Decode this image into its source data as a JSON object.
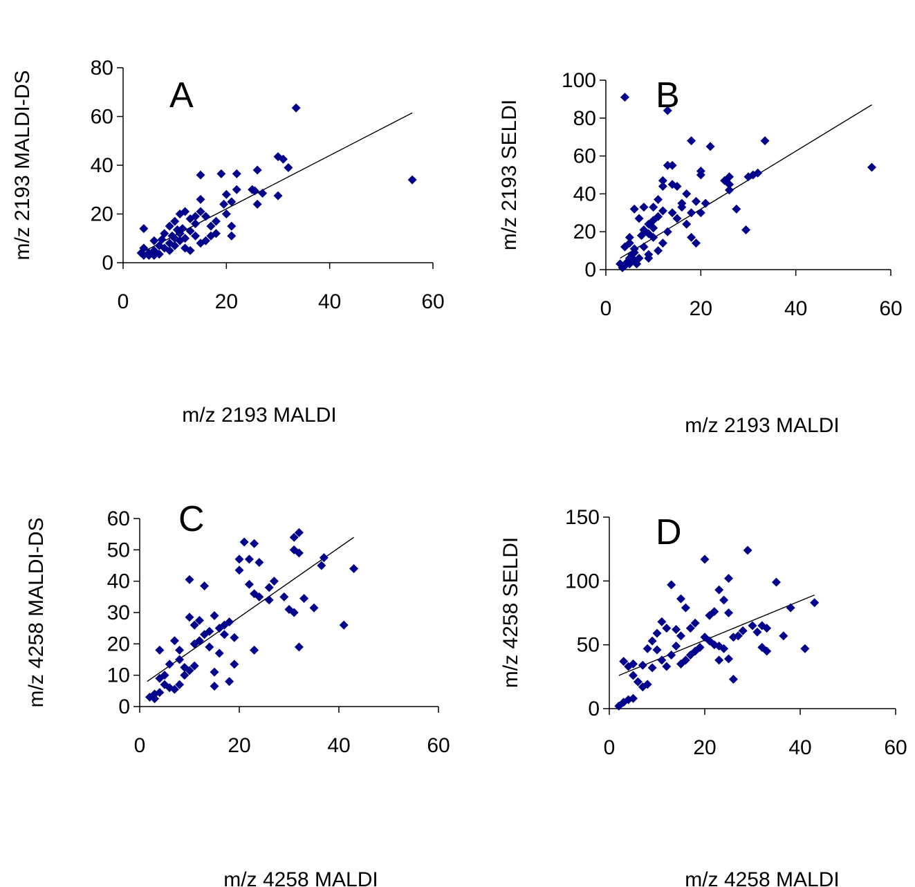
{
  "chart_data": [
    {
      "type": "scatter",
      "panel": "A",
      "xlabel": "m/z 2193 MALDI",
      "ylabel": "m/z 2193 MALDI-DS",
      "xlim": [
        0,
        60
      ],
      "ylim": [
        0,
        80
      ],
      "xticks": [
        0,
        20,
        40,
        60
      ],
      "yticks": [
        0,
        20,
        40,
        60,
        80
      ],
      "marker_color": "#00008B",
      "grid": false,
      "legend": "none",
      "trendline": {
        "x": [
          3,
          56
        ],
        "y": [
          3.5,
          61.5
        ]
      },
      "points": [
        [
          33.5,
          63.5
        ],
        [
          56,
          34
        ],
        [
          30,
          43.5
        ],
        [
          31,
          42.5
        ],
        [
          32,
          39
        ],
        [
          30,
          27.5
        ],
        [
          27,
          28.5
        ],
        [
          26,
          38
        ],
        [
          25,
          30
        ],
        [
          25.5,
          29.5
        ],
        [
          26,
          24
        ],
        [
          22,
          36.5
        ],
        [
          22,
          30
        ],
        [
          20,
          28
        ],
        [
          21,
          25
        ],
        [
          19,
          36.5
        ],
        [
          19.5,
          24
        ],
        [
          20,
          20
        ],
        [
          21,
          15
        ],
        [
          21,
          11
        ],
        [
          18,
          17
        ],
        [
          17,
          15
        ],
        [
          18,
          12
        ],
        [
          17,
          11
        ],
        [
          16,
          9
        ],
        [
          15,
          36
        ],
        [
          15,
          26
        ],
        [
          15,
          21
        ],
        [
          14,
          19
        ],
        [
          13,
          18
        ],
        [
          12,
          21
        ],
        [
          11,
          20
        ],
        [
          10,
          17
        ],
        [
          13,
          13
        ],
        [
          12,
          10
        ],
        [
          11,
          12
        ],
        [
          10,
          10
        ],
        [
          9,
          15
        ],
        [
          9,
          8
        ],
        [
          8,
          12
        ],
        [
          7.5,
          9.5
        ],
        [
          8,
          6
        ],
        [
          7,
          7
        ],
        [
          6,
          9
        ],
        [
          6,
          5
        ],
        [
          5,
          4
        ],
        [
          4,
          6
        ],
        [
          4,
          14
        ],
        [
          3.5,
          4
        ],
        [
          4,
          3
        ],
        [
          5,
          3
        ],
        [
          6,
          3
        ],
        [
          7,
          3.5
        ],
        [
          9,
          5
        ],
        [
          10,
          7
        ],
        [
          11,
          9
        ],
        [
          12,
          6
        ],
        [
          14,
          16
        ],
        [
          16,
          19
        ],
        [
          13,
          5
        ],
        [
          14,
          11
        ],
        [
          15,
          8
        ],
        [
          11.5,
          14
        ],
        [
          9.5,
          11
        ],
        [
          10.5,
          13.5
        ]
      ]
    },
    {
      "type": "scatter",
      "panel": "B",
      "xlabel": "m/z 2193 MALDI",
      "ylabel": "m/z 2193 SELDI",
      "xlim": [
        0,
        60
      ],
      "ylim": [
        0,
        100
      ],
      "xticks": [
        0,
        20,
        40,
        60
      ],
      "yticks": [
        0,
        20,
        40,
        60,
        80,
        100
      ],
      "marker_color": "#00008B",
      "grid": false,
      "legend": "none",
      "trendline": {
        "x": [
          3,
          56
        ],
        "y": [
          6,
          87
        ]
      },
      "points": [
        [
          4,
          91
        ],
        [
          13,
          84
        ],
        [
          56,
          54
        ],
        [
          33.5,
          68
        ],
        [
          31,
          50
        ],
        [
          30,
          49
        ],
        [
          32,
          51
        ],
        [
          29.5,
          21
        ],
        [
          27.5,
          32
        ],
        [
          26,
          49
        ],
        [
          25,
          47
        ],
        [
          26,
          45
        ],
        [
          26,
          42
        ],
        [
          22,
          65
        ],
        [
          20,
          52
        ],
        [
          20,
          50
        ],
        [
          18,
          68
        ],
        [
          21,
          35
        ],
        [
          19,
          36
        ],
        [
          17,
          40
        ],
        [
          18,
          30
        ],
        [
          18,
          17
        ],
        [
          19,
          14
        ],
        [
          20,
          30
        ],
        [
          16,
          33
        ],
        [
          15,
          44
        ],
        [
          13,
          55
        ],
        [
          14,
          55
        ],
        [
          12,
          44
        ],
        [
          11,
          37
        ],
        [
          10,
          33
        ],
        [
          12,
          31
        ],
        [
          11,
          28
        ],
        [
          10,
          26
        ],
        [
          9,
          24
        ],
        [
          8,
          33
        ],
        [
          7,
          27
        ],
        [
          6,
          32
        ],
        [
          9,
          19
        ],
        [
          10,
          17
        ],
        [
          8,
          12
        ],
        [
          9,
          8
        ],
        [
          9,
          6
        ],
        [
          7,
          6
        ],
        [
          6,
          9
        ],
        [
          5,
          17
        ],
        [
          4,
          12
        ],
        [
          5,
          14
        ],
        [
          5,
          3
        ],
        [
          4,
          2
        ],
        [
          3,
          3
        ],
        [
          5,
          6
        ],
        [
          6,
          5
        ],
        [
          6.5,
          3
        ],
        [
          4.5,
          4
        ],
        [
          3.5,
          1
        ],
        [
          12,
          47
        ],
        [
          14,
          45
        ],
        [
          16,
          35
        ],
        [
          17,
          24
        ],
        [
          13,
          20
        ],
        [
          12,
          14
        ],
        [
          11,
          10
        ],
        [
          14,
          30
        ],
        [
          15,
          27
        ],
        [
          10,
          22
        ],
        [
          8,
          21
        ],
        [
          7.5,
          18
        ],
        [
          6,
          11
        ],
        [
          5.5,
          8
        ]
      ]
    },
    {
      "type": "scatter",
      "panel": "C",
      "xlabel": "m/z 4258 MALDI",
      "ylabel": "m/z 4258 MALDI-DS",
      "xlim": [
        0,
        60
      ],
      "ylim": [
        0,
        60
      ],
      "xticks": [
        0,
        20,
        40,
        60
      ],
      "yticks": [
        0,
        10,
        20,
        30,
        40,
        50,
        60
      ],
      "marker_color": "#00008B",
      "grid": false,
      "legend": "none",
      "trendline": {
        "x": [
          1.5,
          43
        ],
        "y": [
          8,
          54
        ]
      },
      "points": [
        [
          31,
          54
        ],
        [
          32,
          55.5
        ],
        [
          21,
          52.5
        ],
        [
          23,
          52
        ],
        [
          31,
          50
        ],
        [
          32,
          49
        ],
        [
          37,
          47.5
        ],
        [
          36.5,
          45
        ],
        [
          43,
          44
        ],
        [
          41,
          26
        ],
        [
          32,
          19
        ],
        [
          35,
          31.5
        ],
        [
          33,
          34.5
        ],
        [
          30,
          31
        ],
        [
          31,
          30
        ],
        [
          29,
          35
        ],
        [
          27,
          40
        ],
        [
          26,
          38
        ],
        [
          26,
          34
        ],
        [
          24,
          35
        ],
        [
          24,
          46
        ],
        [
          22,
          47
        ],
        [
          20,
          47
        ],
        [
          20,
          43.5
        ],
        [
          22,
          39
        ],
        [
          23,
          36
        ],
        [
          23,
          18
        ],
        [
          19,
          13.5
        ],
        [
          18,
          8
        ],
        [
          17,
          23
        ],
        [
          16,
          25
        ],
        [
          15,
          29
        ],
        [
          13,
          38.5
        ],
        [
          15,
          11
        ],
        [
          15,
          6.5
        ],
        [
          14,
          19
        ],
        [
          12,
          21
        ],
        [
          11,
          26
        ],
        [
          12,
          27.5
        ],
        [
          10,
          40.5
        ],
        [
          10,
          28.5
        ],
        [
          11,
          20
        ],
        [
          11,
          13
        ],
        [
          10,
          11.5
        ],
        [
          9,
          12.5
        ],
        [
          8,
          18
        ],
        [
          8,
          15
        ],
        [
          7,
          21
        ],
        [
          6,
          13.5
        ],
        [
          5,
          10
        ],
        [
          4,
          18
        ],
        [
          4,
          9
        ],
        [
          5,
          7
        ],
        [
          6,
          6
        ],
        [
          7,
          5.5
        ],
        [
          8,
          7
        ],
        [
          3,
          4
        ],
        [
          2,
          3
        ],
        [
          3,
          2.5
        ],
        [
          4,
          4.5
        ],
        [
          16,
          17
        ],
        [
          17,
          26
        ],
        [
          18,
          27
        ],
        [
          19,
          22
        ],
        [
          9,
          10
        ],
        [
          13,
          23
        ],
        [
          14,
          24
        ]
      ]
    },
    {
      "type": "scatter",
      "panel": "D",
      "xlabel": "m/z 4258 MALDI",
      "ylabel": "m/z 4258 SELDI",
      "xlim": [
        0,
        60
      ],
      "ylim": [
        0,
        150
      ],
      "xticks": [
        0,
        20,
        40,
        60
      ],
      "yticks": [
        0,
        50,
        100,
        150
      ],
      "marker_color": "#00008B",
      "grid": false,
      "legend": "none",
      "trendline": {
        "x": [
          2,
          43
        ],
        "y": [
          26,
          89
        ]
      },
      "points": [
        [
          29,
          124
        ],
        [
          20,
          117
        ],
        [
          13,
          97
        ],
        [
          25,
          102
        ],
        [
          35,
          99
        ],
        [
          23,
          93
        ],
        [
          15,
          86
        ],
        [
          38,
          79
        ],
        [
          43,
          83
        ],
        [
          41,
          47
        ],
        [
          33,
          45
        ],
        [
          32,
          48
        ],
        [
          36.5,
          57
        ],
        [
          31,
          60
        ],
        [
          30,
          65
        ],
        [
          32,
          65
        ],
        [
          33,
          63
        ],
        [
          24,
          85
        ],
        [
          25,
          75
        ],
        [
          22,
          76
        ],
        [
          21,
          73
        ],
        [
          18,
          67
        ],
        [
          16,
          79
        ],
        [
          17,
          63
        ],
        [
          15,
          57
        ],
        [
          14,
          62
        ],
        [
          12,
          63
        ],
        [
          11,
          68
        ],
        [
          10,
          59
        ],
        [
          9,
          53
        ],
        [
          8,
          47
        ],
        [
          10,
          46
        ],
        [
          11,
          38
        ],
        [
          12,
          33
        ],
        [
          9,
          32
        ],
        [
          8,
          19
        ],
        [
          7,
          17
        ],
        [
          6,
          21
        ],
        [
          5,
          26
        ],
        [
          4,
          33
        ],
        [
          3,
          37
        ],
        [
          5,
          35
        ],
        [
          7,
          34
        ],
        [
          4,
          7
        ],
        [
          3,
          5
        ],
        [
          2,
          2
        ],
        [
          5,
          8
        ],
        [
          20,
          56
        ],
        [
          19,
          48
        ],
        [
          18,
          45
        ],
        [
          17,
          42
        ],
        [
          16,
          38
        ],
        [
          15,
          35
        ],
        [
          22,
          50
        ],
        [
          23,
          49
        ],
        [
          24,
          47
        ],
        [
          26,
          23
        ],
        [
          25,
          39
        ],
        [
          23,
          38
        ],
        [
          21,
          53
        ],
        [
          13,
          42
        ],
        [
          14,
          49
        ],
        [
          27,
          57
        ],
        [
          28,
          61
        ],
        [
          26,
          56
        ]
      ]
    }
  ]
}
